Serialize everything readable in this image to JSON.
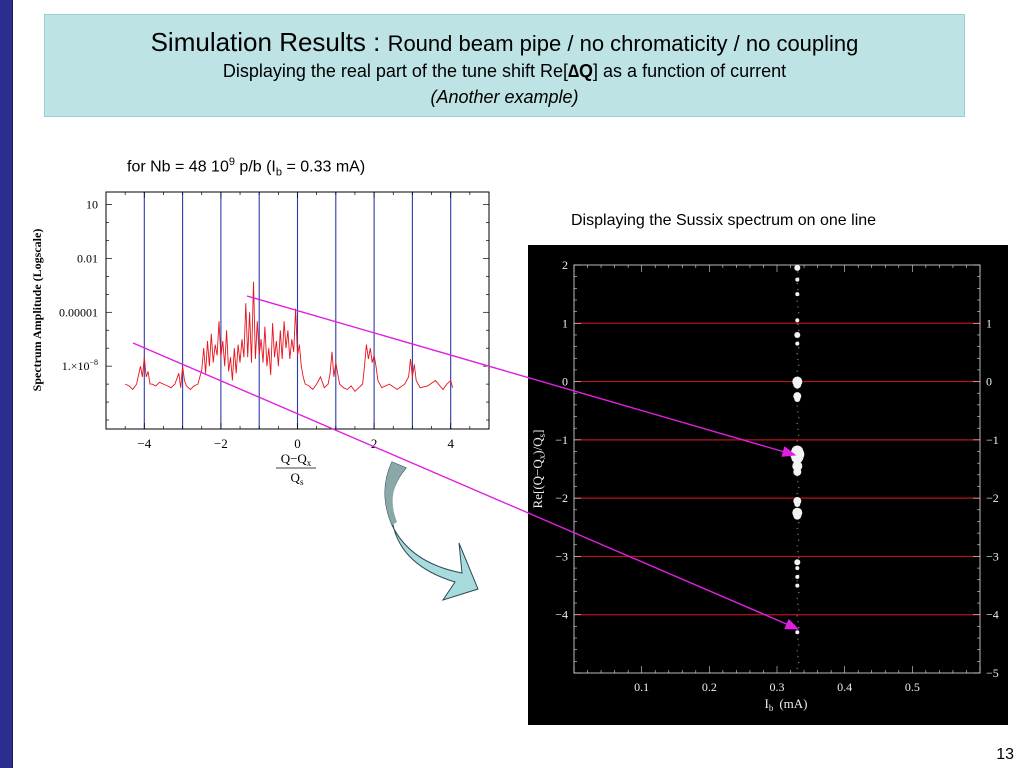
{
  "slide": {
    "title_main": "Simulation Results  : ",
    "title_sub": "Round beam pipe / no chromaticity / no coupling",
    "subtitle_prefix": "Displaying the real part of the tune shift Re[",
    "subtitle_symbol": "∆Q",
    "subtitle_suffix": "] as a function of current",
    "subtitle_italic": "(Another example)",
    "page_number": "13"
  },
  "left_caption": {
    "prefix": "for Nb = 48 10",
    "exp": "9",
    "mid": " p/b (I",
    "subscript": "b",
    "suffix": " = 0.33 mA)"
  },
  "right_caption": "Displaying the Sussix spectrum on one line",
  "colors": {
    "spectrum_line": "#e8141e",
    "gridline_blue": "#2c3aa8",
    "gridline_red": "#b8141a",
    "arrow_magenta": "#e020e0",
    "big_arrow": "#a8dcdc",
    "title_bg": "#bde3e4"
  },
  "chart_data": [
    {
      "type": "line",
      "ylabel": "Spectrum Amplitude (Logscale)",
      "xlabel_num": "Q−Q",
      "xlabel_num_sub": "x",
      "xlabel_den": "Q",
      "xlabel_den_sub": "s",
      "x_range": [
        -5,
        5
      ],
      "y_log_range": [
        -11.5,
        1.7
      ],
      "x_ticks": [
        "−4",
        "−2",
        "0",
        "2",
        "4"
      ],
      "x_tick_values": [
        -4,
        -2,
        0,
        2,
        4
      ],
      "y_ticks": [
        "10",
        "0.01",
        "0.00001",
        "1.×10"
      ],
      "y_tick_exp": [
        "",
        "",
        "",
        "−8"
      ],
      "y_tick_values": [
        1,
        -2,
        -5,
        -8
      ],
      "vertical_lines": [
        -4,
        -3,
        -2,
        -1,
        0,
        1,
        2,
        3,
        4
      ],
      "series": [
        {
          "x": [
            -4.5,
            -4.4,
            -4.3,
            -4.2,
            -4.1,
            -4.05,
            -4.0,
            -3.95,
            -3.9,
            -3.85,
            -3.8,
            -3.7,
            -3.6,
            -3.5,
            -3.4,
            -3.3,
            -3.2,
            -3.1,
            -3.05,
            -3.0,
            -2.95,
            -2.9,
            -2.8,
            -2.7,
            -2.6,
            -2.5,
            -2.45,
            -2.4,
            -2.35,
            -2.3,
            -2.25,
            -2.2,
            -2.15,
            -2.1,
            -2.05,
            -2.0,
            -1.95,
            -1.9,
            -1.85,
            -1.8,
            -1.75,
            -1.7,
            -1.65,
            -1.6,
            -1.55,
            -1.5,
            -1.45,
            -1.4,
            -1.35,
            -1.3,
            -1.25,
            -1.2,
            -1.15,
            -1.1,
            -1.05,
            -1.0,
            -0.95,
            -0.9,
            -0.85,
            -0.8,
            -0.75,
            -0.7,
            -0.65,
            -0.6,
            -0.55,
            -0.5,
            -0.45,
            -0.4,
            -0.35,
            -0.3,
            -0.25,
            -0.2,
            -0.15,
            -0.1,
            -0.05,
            0.0,
            0.05,
            0.1,
            0.15,
            0.2,
            0.3,
            0.4,
            0.5,
            0.6,
            0.7,
            0.8,
            0.85,
            0.9,
            0.95,
            1.0,
            1.05,
            1.1,
            1.2,
            1.3,
            1.4,
            1.5,
            1.6,
            1.7,
            1.75,
            1.8,
            1.85,
            1.9,
            1.95,
            2.0,
            2.05,
            2.1,
            2.2,
            2.4,
            2.6,
            2.8,
            2.9,
            2.95,
            3.0,
            3.05,
            3.1,
            3.2,
            3.4,
            3.6,
            3.8,
            3.9,
            3.95,
            4.0,
            4.05
          ],
          "log_y": [
            -9.0,
            -9.1,
            -9.3,
            -9.0,
            -8.0,
            -8.6,
            -7.5,
            -8.6,
            -8.3,
            -9.0,
            -9.0,
            -9.1,
            -8.9,
            -9.0,
            -9.1,
            -9.2,
            -9.0,
            -8.4,
            -9.2,
            -8.0,
            -8.8,
            -9.1,
            -9.3,
            -9.1,
            -9.0,
            -8.2,
            -7.0,
            -8.4,
            -6.6,
            -8.0,
            -6.2,
            -7.8,
            -6.8,
            -7.4,
            -5.5,
            -7.5,
            -6.6,
            -8.0,
            -6.0,
            -8.3,
            -7.5,
            -8.8,
            -7.0,
            -8.4,
            -6.8,
            -7.8,
            -6.5,
            -7.5,
            -4.5,
            -7.5,
            -5.0,
            -7.8,
            -3.3,
            -7.6,
            -5.5,
            -7.4,
            -6.5,
            -7.8,
            -5.8,
            -8.0,
            -7.0,
            -8.5,
            -5.6,
            -7.5,
            -6.6,
            -8.0,
            -6.0,
            -7.6,
            -5.5,
            -7.0,
            -6.0,
            -7.6,
            -6.5,
            -7.2,
            -4.8,
            -7.4,
            -6.8,
            -8.0,
            -8.6,
            -9.0,
            -9.1,
            -9.3,
            -9.0,
            -8.6,
            -9.2,
            -9.0,
            -8.4,
            -7.2,
            -8.6,
            -7.8,
            -8.4,
            -9.0,
            -9.2,
            -9.3,
            -9.1,
            -9.4,
            -9.2,
            -9.0,
            -8.0,
            -6.8,
            -7.6,
            -7.0,
            -7.8,
            -7.4,
            -8.0,
            -8.8,
            -9.2,
            -9.0,
            -9.3,
            -9.0,
            -8.6,
            -7.6,
            -8.6,
            -7.9,
            -8.8,
            -9.2,
            -9.1,
            -8.8,
            -9.3,
            -9.0,
            -8.9,
            -8.8,
            -9.2
          ]
        }
      ]
    },
    {
      "type": "scatter",
      "xlabel": "I",
      "xlabel_sub": "b",
      "xlabel_unit": "(mA)",
      "ylabel_prefix": "Re[(Q−Q",
      "ylabel_sub1": "x",
      "ylabel_mid": ")/Q",
      "ylabel_sub2": "s",
      "ylabel_suffix": "]",
      "x_range": [
        0,
        0.6
      ],
      "y_range": [
        -5,
        2
      ],
      "x_ticks": [
        "0.1",
        "0.2",
        "0.3",
        "0.4",
        "0.5"
      ],
      "x_tick_values": [
        0.1,
        0.2,
        0.3,
        0.4,
        0.5
      ],
      "y_ticks_left": [
        "2",
        "1",
        "0",
        "−1",
        "−2",
        "−3",
        "−4"
      ],
      "y_tick_left_values": [
        2,
        1,
        0,
        -1,
        -2,
        -3,
        -4
      ],
      "y_ticks_right": [
        "1",
        "0",
        "−1",
        "−2",
        "−3",
        "−4",
        "−5"
      ],
      "y_tick_right_values": [
        1,
        0,
        -1,
        -2,
        -3,
        -4,
        -5
      ],
      "horizontal_lines": [
        1,
        0,
        -1,
        -2,
        -3,
        -4
      ],
      "series": [
        {
          "x": [
            0.33,
            0.33,
            0.33,
            0.33,
            0.33,
            0.33,
            0.33,
            0.33,
            0.33,
            0.33,
            0.33,
            0.33,
            0.33,
            0.33,
            0.33,
            0.33,
            0.33,
            0.33,
            0.33,
            0.33,
            0.33,
            0.33,
            0.33,
            0.33
          ],
          "y": [
            1.95,
            1.75,
            1.5,
            1.05,
            0.8,
            0.65,
            0.0,
            -0.05,
            -0.25,
            -0.3,
            -1.2,
            -1.25,
            -1.3,
            -1.45,
            -1.55,
            -2.05,
            -2.1,
            -2.25,
            -2.3,
            -3.1,
            -3.2,
            -3.35,
            -3.5,
            -4.3
          ],
          "size": [
            3,
            2,
            2,
            2,
            3,
            2,
            5,
            4,
            4,
            3,
            6,
            7,
            6,
            5,
            4,
            4,
            3,
            5,
            4,
            3,
            2,
            2,
            2,
            2
          ]
        }
      ]
    }
  ]
}
